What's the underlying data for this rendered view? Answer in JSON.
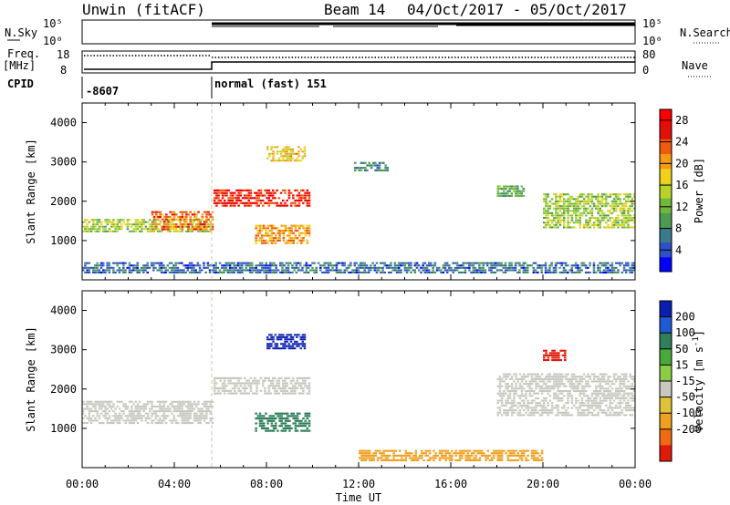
{
  "header": {
    "title": "Unwin (fitACF)",
    "beam": "Beam 14",
    "dates": "04/Oct/2017 - 05/Oct/2017"
  },
  "status_panel": {
    "nsky_label": "N.Sky",
    "nsearch_label": "N.Search",
    "nsky_ticks": [
      "10^5",
      "10^0"
    ],
    "nsearch_ticks": [
      "10^5",
      "10^0"
    ],
    "freq_label": "Freq.",
    "freq_unit": "[MHz]",
    "freq_ticks": [
      "18",
      "8"
    ],
    "nave_label": "Nave",
    "nave_ticks": [
      "80",
      "0"
    ],
    "cpid_label": "CPID",
    "cpid_values": [
      "-8607",
      "normal (fast) 151"
    ]
  },
  "power_panel": {
    "colorbar_label": "Power [dB]"
  },
  "velocity_panel": {
    "colorbar_label": "Velocity [m s",
    "colorbar_label_sup": "-1",
    "colorbar_label_end": "]"
  },
  "colors": {
    "power": [
      "#0000ff",
      "#2d4fc9",
      "#3a7a8a",
      "#4e9a50",
      "#6fb83c",
      "#b9d22a",
      "#f0d01a",
      "#f59a12",
      "#ef5a0e",
      "#e01008",
      "#ff0000"
    ],
    "velocity_pos": [
      "#0a1fb0",
      "#1e5ad6",
      "#2f7f5a",
      "#49a83a",
      "#8acd42"
    ],
    "velocity_neg": [
      "#c8c8c0",
      "#e0c23a",
      "#f0a020",
      "#ef6a12",
      "#e01a08"
    ],
    "ground": "#c8c8c0"
  },
  "chart_data": [
    {
      "type": "heatmap",
      "title": "",
      "xlabel": "Time UT",
      "ylabel": "Slant Range [km]",
      "xlim": [
        "00:00",
        "24:00"
      ],
      "ylim": [
        0,
        4500
      ],
      "x_ticks": [
        "00:00",
        "04:00",
        "08:00",
        "12:00",
        "16:00",
        "20:00",
        "00:00"
      ],
      "y_ticks": [
        "1000",
        "2000",
        "3000",
        "4000"
      ],
      "colorbar": {
        "label": "Power [dB]",
        "ticks": [
          "28",
          "24",
          "20",
          "16",
          "12",
          "8",
          "4"
        ],
        "range": [
          0,
          30
        ]
      },
      "series": [
        {
          "time_start": 0.0,
          "time_end": 5.7,
          "range_start": 1200,
          "range_end": 1550,
          "value": 14
        },
        {
          "time_start": 3.0,
          "time_end": 5.7,
          "range_start": 1250,
          "range_end": 1750,
          "value": 22
        },
        {
          "time_start": 5.7,
          "time_end": 9.9,
          "range_start": 1850,
          "range_end": 2300,
          "value": 26
        },
        {
          "time_start": 7.5,
          "time_end": 9.9,
          "range_start": 900,
          "range_end": 1400,
          "value": 20
        },
        {
          "time_start": 8.0,
          "time_end": 9.7,
          "range_start": 3000,
          "range_end": 3400,
          "value": 18
        },
        {
          "time_start": 11.8,
          "time_end": 13.3,
          "range_start": 2750,
          "range_end": 3000,
          "value": 8
        },
        {
          "time_start": 18.0,
          "time_end": 19.2,
          "range_start": 2100,
          "range_end": 2400,
          "value": 10
        },
        {
          "time_start": 20.0,
          "time_end": 24.0,
          "range_start": 1300,
          "range_end": 2200,
          "value": 14
        },
        {
          "time_start": 0.0,
          "time_end": 24.0,
          "range_start": 150,
          "range_end": 450,
          "value": 6
        }
      ]
    },
    {
      "type": "heatmap",
      "title": "",
      "xlabel": "Time UT",
      "ylabel": "Slant Range [km]",
      "xlim": [
        "00:00",
        "24:00"
      ],
      "ylim": [
        0,
        4500
      ],
      "x_ticks": [
        "00:00",
        "04:00",
        "08:00",
        "12:00",
        "16:00",
        "20:00",
        "00:00"
      ],
      "y_ticks": [
        "1000",
        "2000",
        "3000",
        "4000"
      ],
      "colorbar": {
        "label": "Velocity [m s-1]",
        "ticks": [
          "200",
          "100",
          "50",
          "15",
          "-15",
          "-50",
          "-100",
          "-200"
        ],
        "range": [
          -250,
          250
        ]
      },
      "series": [
        {
          "time_start": 0.0,
          "time_end": 5.7,
          "range_start": 1100,
          "range_end": 1700,
          "value": 0
        },
        {
          "time_start": 5.7,
          "time_end": 9.9,
          "range_start": 1850,
          "range_end": 2300,
          "value": 0
        },
        {
          "time_start": 7.5,
          "time_end": 9.9,
          "range_start": 900,
          "range_end": 1400,
          "value": 60
        },
        {
          "time_start": 8.0,
          "time_end": 9.7,
          "range_start": 3000,
          "range_end": 3400,
          "value": 180
        },
        {
          "time_start": 18.0,
          "time_end": 24.0,
          "range_start": 1300,
          "range_end": 2400,
          "value": 0
        },
        {
          "time_start": 20.0,
          "time_end": 21.0,
          "range_start": 2700,
          "range_end": 3000,
          "value": -180
        },
        {
          "time_start": 12.0,
          "time_end": 20.0,
          "range_start": 150,
          "range_end": 450,
          "value": -60
        }
      ]
    }
  ]
}
